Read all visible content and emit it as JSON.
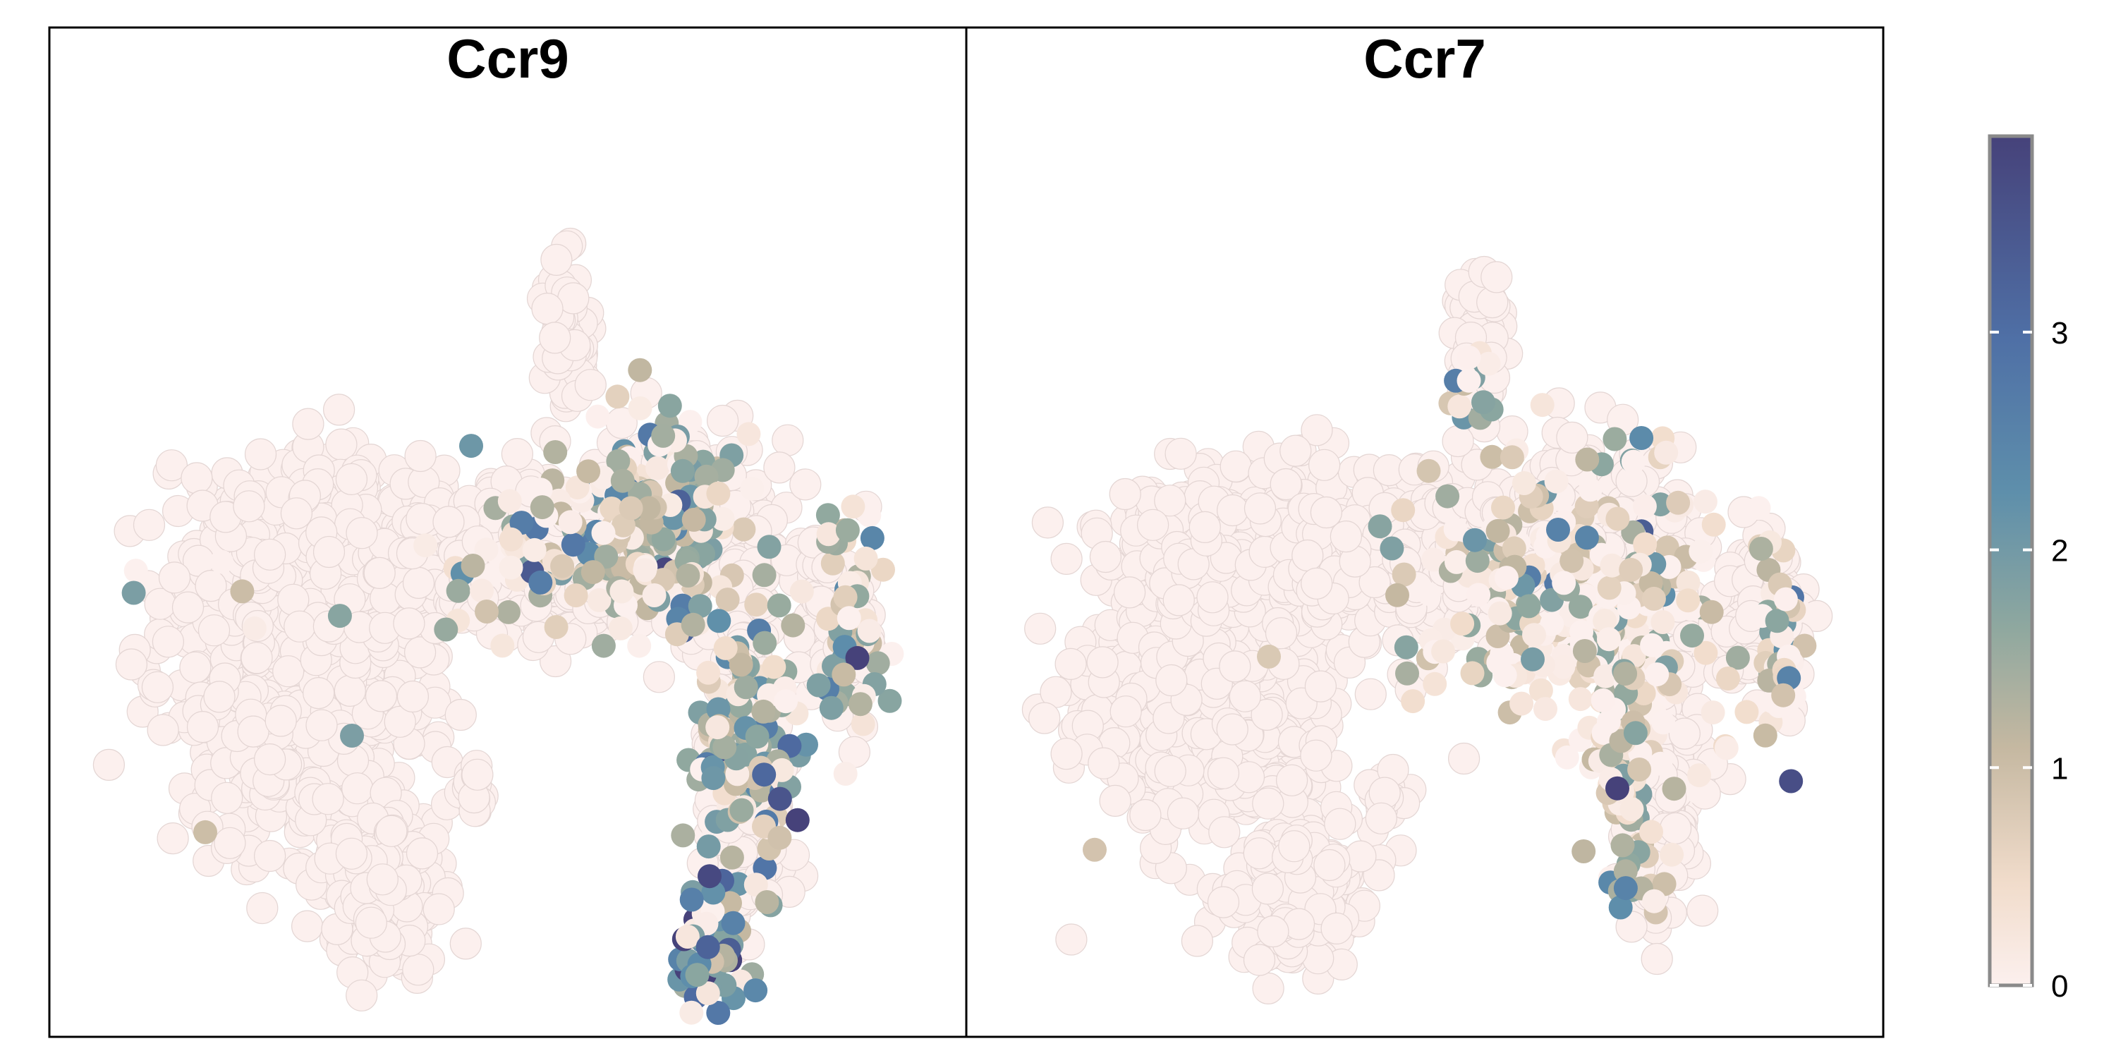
{
  "chart_data": [
    {
      "type": "scatter",
      "title": "Ccr9",
      "xlabel": "",
      "ylabel": "",
      "grid": false,
      "color_scale": {
        "min": 0,
        "max": 3.9,
        "ticks": [
          0,
          1,
          2,
          3
        ],
        "stops": [
          "#fcf0ee",
          "#f1dccb",
          "#c5b8a1",
          "#8fa89f",
          "#5e8fab",
          "#4f70a6",
          "#46427a"
        ]
      },
      "expression_clusters": [
        {
          "cx": 0.66,
          "cy": 0.44,
          "rx": 0.085,
          "ry": 0.12,
          "n": 210,
          "level": 1.6
        },
        {
          "cx": 0.76,
          "cy": 0.7,
          "rx": 0.05,
          "ry": 0.15,
          "n": 150,
          "level": 1.7
        },
        {
          "cx": 0.72,
          "cy": 0.93,
          "rx": 0.04,
          "ry": 0.07,
          "n": 55,
          "level": 2.5
        },
        {
          "cx": 0.87,
          "cy": 0.54,
          "rx": 0.035,
          "ry": 0.12,
          "n": 55,
          "level": 1.4
        },
        {
          "cx": 0.55,
          "cy": 0.47,
          "rx": 0.1,
          "ry": 0.08,
          "n": 60,
          "level": 1.1
        },
        {
          "cx": 0.3,
          "cy": 0.52,
          "rx": 0.22,
          "ry": 0.08,
          "n": 10,
          "level": 1.0
        }
      ],
      "highlight_points": [
        {
          "x": 0.46,
          "y": 0.35,
          "value": 2.4
        },
        {
          "x": 0.33,
          "y": 0.68,
          "value": 2.2
        },
        {
          "x": 0.17,
          "y": 0.79,
          "value": 1.2
        },
        {
          "x": 0.72,
          "y": 0.84,
          "value": 3.8
        }
      ]
    },
    {
      "type": "scatter",
      "title": "Ccr7",
      "xlabel": "",
      "ylabel": "",
      "grid": false,
      "color_scale": {
        "min": 0,
        "max": 3.9,
        "ticks": [
          0,
          1,
          2,
          3
        ],
        "stops": [
          "#fcf0ee",
          "#f1dccb",
          "#c5b8a1",
          "#8fa89f",
          "#5e8fab",
          "#4f70a6",
          "#46427a"
        ]
      },
      "expression_clusters": [
        {
          "cx": 0.66,
          "cy": 0.52,
          "rx": 0.16,
          "ry": 0.16,
          "n": 300,
          "level": 0.9
        },
        {
          "cx": 0.72,
          "cy": 0.72,
          "rx": 0.05,
          "ry": 0.12,
          "n": 80,
          "level": 1.1
        },
        {
          "cx": 0.55,
          "cy": 0.28,
          "rx": 0.03,
          "ry": 0.06,
          "n": 15,
          "level": 0.6
        },
        {
          "cx": 0.73,
          "cy": 0.85,
          "rx": 0.04,
          "ry": 0.05,
          "n": 15,
          "level": 1.7
        },
        {
          "cx": 0.89,
          "cy": 0.58,
          "rx": 0.03,
          "ry": 0.1,
          "n": 40,
          "level": 0.9
        }
      ],
      "highlight_points": [
        {
          "x": 0.71,
          "y": 0.74,
          "value": 3.9
        },
        {
          "x": 0.14,
          "y": 0.81,
          "value": 1.1
        },
        {
          "x": 0.33,
          "y": 0.59,
          "value": 1.0
        },
        {
          "x": 0.47,
          "y": 0.52,
          "value": 1.3
        }
      ]
    }
  ],
  "colorbar": {
    "ticks": [
      "0",
      "1",
      "2",
      "3"
    ],
    "tick_values": [
      0,
      1,
      2,
      3
    ],
    "min": 0,
    "max": 3.9
  }
}
